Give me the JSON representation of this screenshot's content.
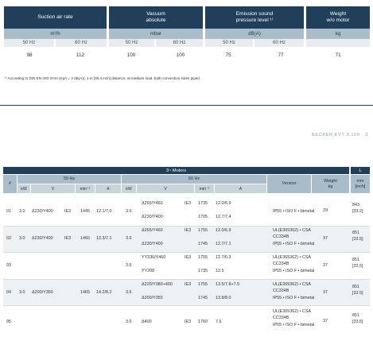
{
  "top": {
    "h1": [
      "Suction air rate",
      "Vacuum\nabsolute",
      "Emission sound\npressure level ¹⁾",
      "Weight\nw/o motor"
    ],
    "h2": [
      "m³/h",
      "mbar",
      "dB(A)",
      "kg"
    ],
    "h3": [
      "50 Hz",
      "60 Hz",
      "50 Hz",
      "60 Hz",
      "50 Hz",
      "60 Hz"
    ],
    "values": [
      "98",
      "112",
      "100",
      "100",
      "75",
      "77",
      "71"
    ],
    "footnote": "¹⁾ According to DIN EN ISO 3744 (KpA = 3 dB(A)), 1 m [39.4 inch] distance, at medium load, both connection sides piped"
  },
  "page_label": "BECKER KVT 3.100 · 3",
  "motors": {
    "title": "3~ Motors",
    "L": "L",
    "h_hash": "#",
    "h_50": "50 Hz",
    "h_60": "60 Hz",
    "h_version": "Version",
    "h_weight": "Weight\nkg",
    "h_mm": "mm\n[inch]",
    "sub": [
      "kW",
      "V",
      "min⁻¹",
      "A",
      "kW",
      "V",
      "min⁻¹",
      "A"
    ],
    "rows": [
      {
        "n": "01",
        "kw50": "3.0",
        "v50": "Δ230/Y400",
        "ie50": "IE3",
        "rpm50": "1445",
        "a50": "12.1/7.0",
        "kw60": "3.6",
        "v60": [
          "Δ265/Y460",
          "Δ230/Y400"
        ],
        "ie60": [
          "IE3",
          ""
        ],
        "rpm60": [
          "1735",
          "1705"
        ],
        "a60": [
          "12.0/6.9",
          "12.7/7.4"
        ],
        "version": [
          "IP55 • ISO F • bimetal"
        ],
        "weight": "29",
        "mm": [
          "843",
          "[33.2]"
        ]
      },
      {
        "n": "02",
        "kw50": "3.0",
        "v50": "Δ230/Y400",
        "ie50": "IE3",
        "rpm50": "1460",
        "a50": "12.3/7.1",
        "kw60": "3.6",
        "v60": [
          "Δ265/Y460",
          "Δ230/Y400"
        ],
        "ie60": [
          "IE3",
          ""
        ],
        "rpm60": [
          "1755",
          "1745"
        ],
        "a60": [
          "12.0/6.9",
          "12.7/7.1"
        ],
        "version": [
          "UL(E365362) • CSA",
          "CC334B",
          "IP55 • ISO F • bimetal"
        ],
        "weight": "37",
        "mm": [
          "851",
          "[33.5]"
        ]
      },
      {
        "n": "03",
        "kw50": "",
        "v50": "",
        "ie50": "",
        "rpm50": "",
        "a50": "",
        "kw60": "3.6",
        "v60": [
          "YY230/Y460",
          "YY208"
        ],
        "ie60": [
          "IE3",
          ""
        ],
        "rpm60": [
          "1755",
          "1735"
        ],
        "a60": [
          "12.7/6.3",
          "13.5"
        ],
        "version": [
          "UL(E365362) • CSA",
          "CC334B",
          "IP55 • ISO F • bimetal"
        ],
        "weight": "37",
        "mm": [
          "851",
          "[33.5]"
        ]
      },
      {
        "n": "04",
        "kw50": "3.0",
        "v50": "Δ200/Y350",
        "ie50": "",
        "rpm50": "1465",
        "a50": "14.2/8.2",
        "kw60": "3.6",
        "v60": [
          "Δ220/Y380+400",
          "Δ200/Y350"
        ],
        "ie60": [
          "IE3",
          ""
        ],
        "rpm60": [
          "1755",
          "1745"
        ],
        "a60": [
          "13.5/7.8+7.5",
          "13.8/8.0"
        ],
        "version": [
          "UL(E365362) • CSA",
          "CC334B",
          "IP55 • ISO F • bimetal"
        ],
        "weight": "37",
        "mm": [
          "851",
          "[33.5]"
        ]
      },
      {
        "n": "05",
        "kw50": "",
        "v50": "",
        "ie50": "",
        "rpm50": "",
        "a50": "",
        "kw60": "3.6",
        "v60": [
          "Δ400"
        ],
        "ie60": [
          "IE3"
        ],
        "rpm60": [
          "1760"
        ],
        "a60": [
          "7.6"
        ],
        "version": [
          "UL(E365362) • CSA",
          "CC334B",
          "IP55 • ISO F • bimetal"
        ],
        "weight": "37",
        "mm": [
          "851",
          "[33.5]"
        ]
      }
    ]
  },
  "colors": {
    "header": "#1f3f5a",
    "subheader": "#a9bcca",
    "stripe": "#eef1f3"
  }
}
